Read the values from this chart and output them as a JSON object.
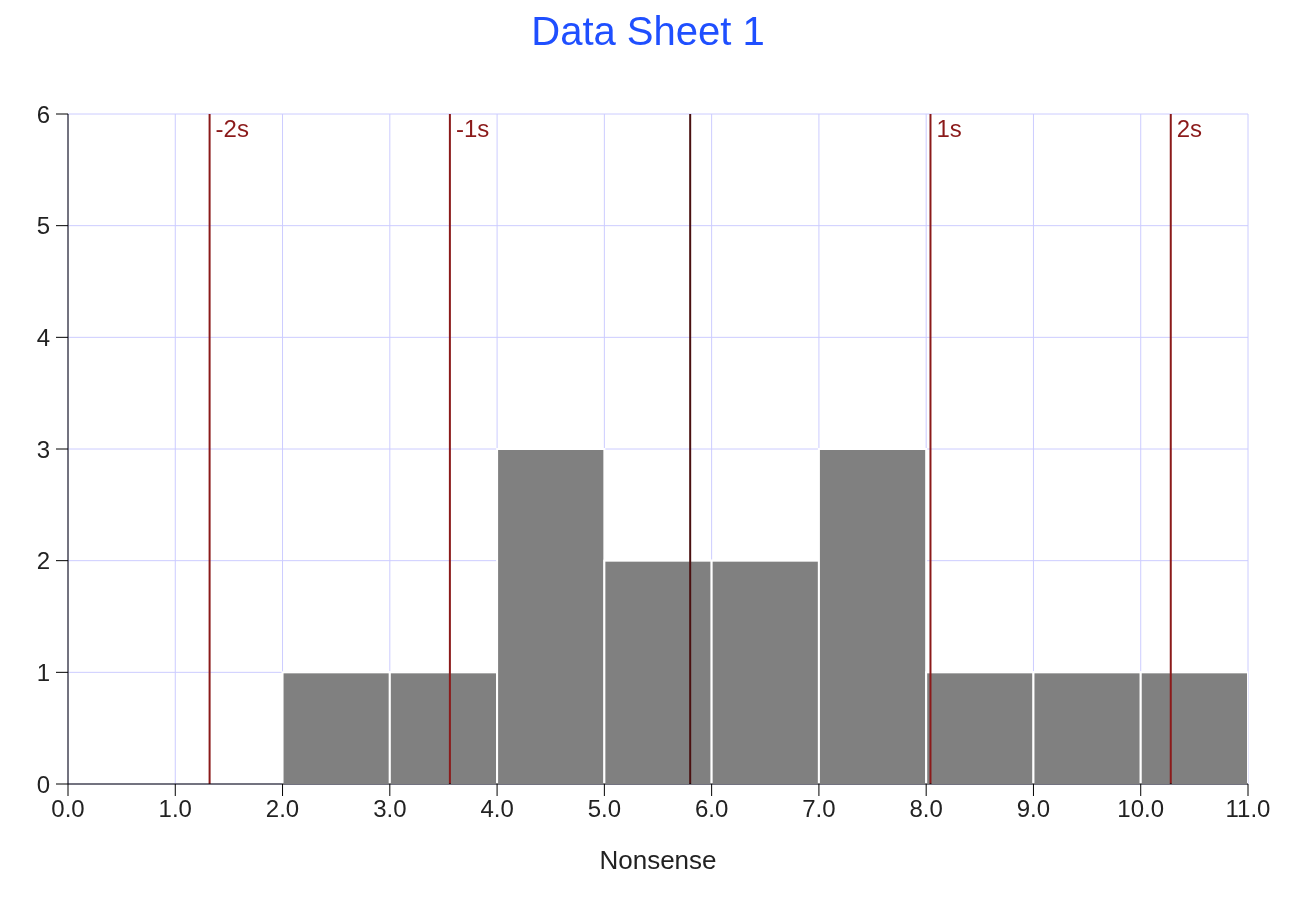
{
  "chart_data": {
    "type": "histogram",
    "title": "Data Sheet 1",
    "xlabel": "Nonsense",
    "bins": [
      2,
      3,
      4,
      5,
      6,
      7,
      8,
      9,
      10,
      11
    ],
    "values": [
      1,
      1,
      3,
      2,
      2,
      3,
      1,
      1,
      1
    ],
    "color": "#808080",
    "xlim": [
      0,
      11
    ],
    "xticks": [
      {
        "value": 0,
        "label": "0.0"
      },
      {
        "value": 1,
        "label": "1.0"
      },
      {
        "value": 2,
        "label": "2.0"
      },
      {
        "value": 3,
        "label": "3.0"
      },
      {
        "value": 4,
        "label": "4.0"
      },
      {
        "value": 5,
        "label": "5.0"
      },
      {
        "value": 6,
        "label": "6.0"
      },
      {
        "value": 7,
        "label": "7.0"
      },
      {
        "value": 8,
        "label": "8.0"
      },
      {
        "value": 9,
        "label": "9.0"
      },
      {
        "value": 10,
        "label": "10.0"
      },
      {
        "value": 11,
        "label": "11.0"
      }
    ],
    "ylim": [
      0,
      6
    ],
    "yticks": [
      0,
      1,
      2,
      3,
      4,
      5,
      6
    ],
    "grid": true,
    "ref_lines": [
      {
        "axis": "x",
        "value": 1.32,
        "label": "-2s",
        "color": "#8b1a1a"
      },
      {
        "axis": "x",
        "value": 3.56,
        "label": "-1s",
        "color": "#8b1a1a"
      },
      {
        "axis": "x",
        "value": 5.8,
        "label": null,
        "color": "#4a1010"
      },
      {
        "axis": "x",
        "value": 8.04,
        "label": "1s",
        "color": "#8b1a1a"
      },
      {
        "axis": "x",
        "value": 10.28,
        "label": "2s",
        "color": "#8b1a1a"
      }
    ]
  }
}
